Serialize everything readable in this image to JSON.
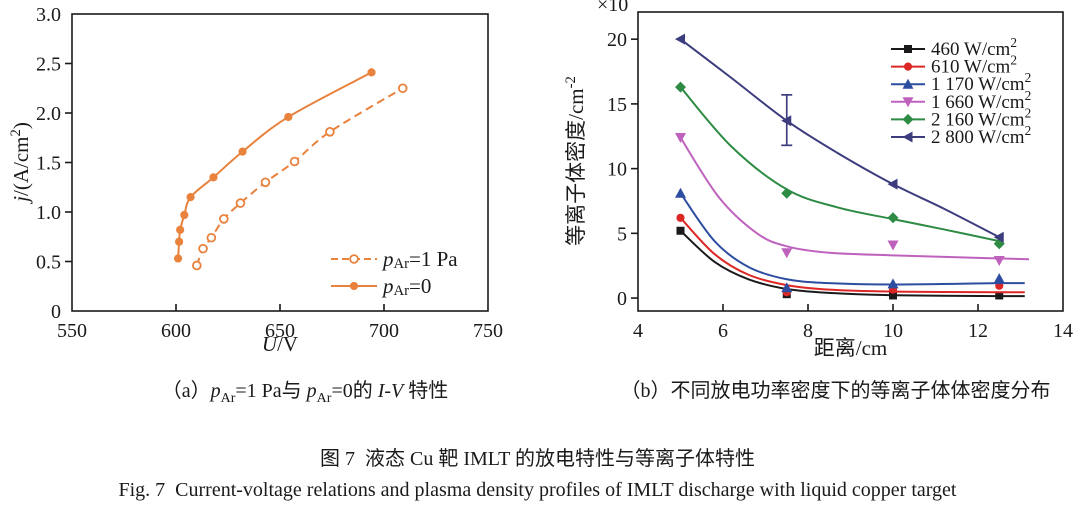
{
  "figure": {
    "caption_cn": "图 7  液态 Cu 靶 IMLT 的放电特性与等离子体特性",
    "caption_en": "Fig. 7  Current-voltage relations and plasma density profiles of IMLT discharge with liquid copper target"
  },
  "captions": {
    "a": {
      "p0": "（a）",
      "p1": "p",
      "p2": "Ar",
      "p3": "=1 Pa与 ",
      "p4": "p",
      "p5": "Ar",
      "p6": "=0的 ",
      "p7": "I-V",
      "p8": " 特性"
    },
    "b": "（b）不同放电功率密度下的等离子体体密度分布"
  },
  "colors": {
    "axis": "#1A1A1A",
    "orange": "#E8823D",
    "black": "#1A1A1A",
    "red": "#DC2725",
    "blue": "#2D4DA1",
    "magenta": "#BF62BE",
    "green": "#2E8B44",
    "navy": "#3C3C7E"
  },
  "chart_data": [
    {
      "type": "line",
      "title": "",
      "x_label": {
        "italic": "U",
        "rest": "/V"
      },
      "y_label": {
        "italic": "j",
        "rest": "/(A/cm",
        "sup": "2",
        "close": ")"
      },
      "xlim": [
        550,
        750
      ],
      "ylim": [
        0,
        3
      ],
      "xticks": [
        550,
        600,
        650,
        700,
        750
      ],
      "yticks": [
        "0",
        "0.5",
        "1.0",
        "1.5",
        "2.0",
        "2.5",
        "3.0"
      ],
      "grid": false,
      "legend_position": "inside lower right",
      "series": [
        {
          "name": "pAr-1Pa",
          "label": "p_Ar=1 Pa",
          "label_parts": [
            [
              "i",
              "p"
            ],
            [
              "sub",
              "Ar"
            ],
            [
              "n",
              "=1 Pa"
            ]
          ],
          "color": "#E8823D",
          "dash": "dashed",
          "marker": "circle-open",
          "points": [
            [
              610,
              0.46
            ],
            [
              613,
              0.63
            ],
            [
              617,
              0.74
            ],
            [
              623,
              0.93
            ],
            [
              631,
              1.09
            ],
            [
              643,
              1.3
            ],
            [
              657,
              1.51
            ],
            [
              674,
              1.81
            ],
            [
              709,
              2.25
            ]
          ]
        },
        {
          "name": "pAr-0",
          "label": "p_Ar=0",
          "label_parts": [
            [
              "i",
              "p"
            ],
            [
              "sub",
              "Ar"
            ],
            [
              "n",
              "=0"
            ]
          ],
          "color": "#E8823D",
          "dash": "solid",
          "marker": "circle",
          "points": [
            [
              601,
              0.53
            ],
            [
              601.5,
              0.7
            ],
            [
              602,
              0.82
            ],
            [
              604,
              0.97
            ],
            [
              607,
              1.15
            ],
            [
              618,
              1.35
            ],
            [
              632,
              1.61
            ],
            [
              654,
              1.96
            ],
            [
              694,
              2.41
            ]
          ]
        }
      ]
    },
    {
      "type": "line",
      "title": "",
      "scale_label": "×10",
      "x_label": {
        "rest": "距离/cm"
      },
      "y_label": {
        "rest": "等离子体密度/cm",
        "sup": "-2"
      },
      "xlim": [
        4,
        14
      ],
      "ylim": [
        -1,
        22.1
      ],
      "xticks": [
        4,
        6,
        8,
        10,
        12,
        14
      ],
      "yticks": [
        "0",
        "5",
        "10",
        "15",
        "20"
      ],
      "grid": false,
      "legend_position": "inside upper right",
      "x_categories_cm": [
        5,
        7.5,
        10,
        12.5
      ],
      "series": [
        {
          "name": "460",
          "label": "460 W/cm²",
          "label_parts": [
            [
              "n",
              "460 W/cm"
            ],
            [
              "sup",
              "2"
            ]
          ],
          "color": "#1A1A1A",
          "dash": "solid",
          "marker": "square",
          "points": [
            [
              5,
              5.2
            ],
            [
              7.5,
              0.3
            ],
            [
              10,
              0.2
            ],
            [
              12.5,
              0.2
            ]
          ],
          "curve": [
            [
              5,
              5.2
            ],
            [
              5.8,
              2.8
            ],
            [
              6.6,
              1.45
            ],
            [
              7.5,
              0.7
            ],
            [
              8.5,
              0.4
            ],
            [
              10,
              0.22
            ],
            [
              12.5,
              0.15
            ],
            [
              13.1,
              0.15
            ]
          ]
        },
        {
          "name": "610",
          "label": "610 W/cm²",
          "label_parts": [
            [
              "n",
              "610 W/cm"
            ],
            [
              "sup",
              "2"
            ]
          ],
          "color": "#DC2725",
          "dash": "solid",
          "marker": "circle",
          "points": [
            [
              5,
              6.2
            ],
            [
              7.5,
              0.45
            ],
            [
              10,
              0.65
            ],
            [
              12.5,
              0.95
            ]
          ],
          "curve": [
            [
              5,
              6.2
            ],
            [
              5.8,
              3.4
            ],
            [
              6.6,
              1.8
            ],
            [
              7.5,
              1.0
            ],
            [
              8.5,
              0.65
            ],
            [
              10,
              0.5
            ],
            [
              12.5,
              0.45
            ],
            [
              13.1,
              0.45
            ]
          ]
        },
        {
          "name": "1170",
          "label": "1 170 W/cm²",
          "label_parts": [
            [
              "n",
              "1 170 W/cm"
            ],
            [
              "sup",
              "2"
            ]
          ],
          "color": "#2D4DA1",
          "dash": "solid",
          "marker": "triangle-up",
          "points": [
            [
              5,
              8.1
            ],
            [
              7.5,
              0.8
            ],
            [
              10,
              1.1
            ],
            [
              12.5,
              1.5
            ]
          ],
          "curve": [
            [
              5,
              8.1
            ],
            [
              5.8,
              4.4
            ],
            [
              6.6,
              2.4
            ],
            [
              7.5,
              1.45
            ],
            [
              8.5,
              1.15
            ],
            [
              10,
              1.05
            ],
            [
              12.5,
              1.15
            ],
            [
              13.1,
              1.15
            ]
          ]
        },
        {
          "name": "1660",
          "label": "1 660 W/cm²",
          "label_parts": [
            [
              "n",
              "1 660 W/cm"
            ],
            [
              "sup",
              "2"
            ]
          ],
          "color": "#BF62BE",
          "dash": "solid",
          "marker": "triangle-down",
          "points": [
            [
              5,
              12.4
            ],
            [
              7.5,
              3.5
            ],
            [
              10,
              4.1
            ],
            [
              12.5,
              2.9
            ]
          ],
          "curve": [
            [
              5,
              12.4
            ],
            [
              5.9,
              7.8
            ],
            [
              6.8,
              5.0
            ],
            [
              7.5,
              4.0
            ],
            [
              8.5,
              3.5
            ],
            [
              10,
              3.3
            ],
            [
              11.5,
              3.15
            ],
            [
              13.2,
              3.0
            ]
          ]
        },
        {
          "name": "2160",
          "label": "2 160 W/cm²",
          "label_parts": [
            [
              "n",
              "2 160 W/cm"
            ],
            [
              "sup",
              "2"
            ]
          ],
          "color": "#2E8B44",
          "dash": "solid",
          "marker": "diamond",
          "points": [
            [
              5,
              16.3
            ],
            [
              7.5,
              8.1
            ],
            [
              10,
              6.2
            ],
            [
              12.5,
              4.2
            ]
          ],
          "curve": [
            [
              5,
              16.3
            ],
            [
              6.2,
              11.7
            ],
            [
              7.5,
              8.4
            ],
            [
              8.7,
              7.0
            ],
            [
              10,
              6.1
            ],
            [
              11.2,
              5.3
            ],
            [
              12.5,
              4.4
            ]
          ]
        },
        {
          "name": "2800",
          "label": "2 800 W/cm²",
          "label_parts": [
            [
              "n",
              "2 800 W/cm"
            ],
            [
              "sup",
              "2"
            ]
          ],
          "color": "#3C3C7E",
          "dash": "solid",
          "marker": "triangle-left",
          "points": [
            [
              5,
              20.0
            ],
            [
              7.5,
              13.7
            ],
            [
              10,
              8.8
            ],
            [
              12.5,
              4.7
            ]
          ],
          "curve": [
            [
              5,
              20.0
            ],
            [
              6.2,
              17.0
            ],
            [
              7.5,
              13.7
            ],
            [
              8.7,
              11.2
            ],
            [
              10,
              8.8
            ],
            [
              11.2,
              6.9
            ],
            [
              12.5,
              4.7
            ]
          ],
          "error_bars": [
            {
              "x": 7.5,
              "low": 11.8,
              "high": 15.7
            }
          ]
        }
      ]
    }
  ]
}
